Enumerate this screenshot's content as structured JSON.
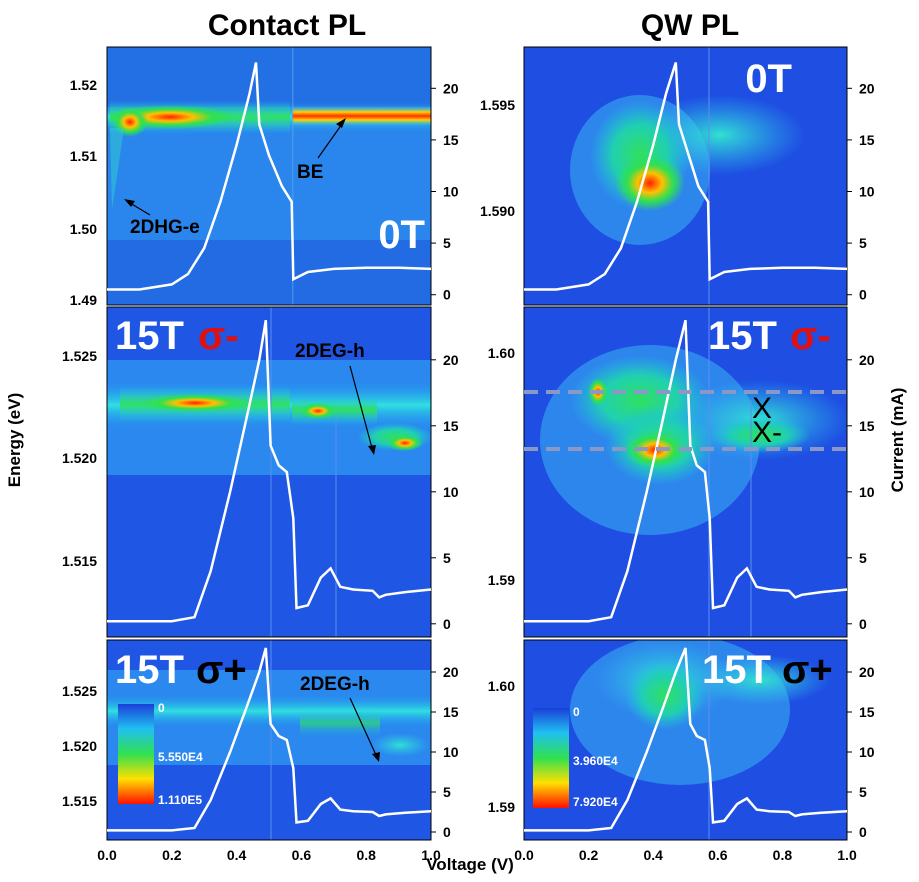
{
  "titles": {
    "left": "Contact PL",
    "right": "QW PL"
  },
  "axis_titles": {
    "x": "Voltage (V)",
    "y_left": "Energy (eV)",
    "y_right": "Current (mA)"
  },
  "colors": {
    "heat_low": "#1f4fe0",
    "heat_mid": "#20e060",
    "heat_high": "#ffe000",
    "heat_max": "#ff2000",
    "curve": "#ffffff"
  },
  "chart_data": [
    {
      "id": "contact-0T",
      "type": "heatmap",
      "panel_label": "0T",
      "polarization": "",
      "x": [
        0,
        1
      ],
      "ylim": [
        1.488,
        1.524
      ],
      "y2lim": [
        -1,
        24
      ],
      "yticks": [
        "1.49",
        "1.50",
        "1.51",
        "1.52"
      ],
      "annotations": [
        "2DHG-e",
        "BE"
      ],
      "current": [
        [
          0,
          0.5
        ],
        [
          0.1,
          0.5
        ],
        [
          0.2,
          1.0
        ],
        [
          0.25,
          2.0
        ],
        [
          0.3,
          4.5
        ],
        [
          0.35,
          9.0
        ],
        [
          0.4,
          14.5
        ],
        [
          0.44,
          19.5
        ],
        [
          0.46,
          22.5
        ],
        [
          0.47,
          16.5
        ],
        [
          0.5,
          13.5
        ],
        [
          0.54,
          10.5
        ],
        [
          0.57,
          9.0
        ],
        [
          0.575,
          1.5
        ],
        [
          0.62,
          2.2
        ],
        [
          0.7,
          2.5
        ],
        [
          0.8,
          2.6
        ],
        [
          0.9,
          2.6
        ],
        [
          1.0,
          2.5
        ]
      ]
    },
    {
      "id": "qw-0T",
      "type": "heatmap",
      "panel_label": "0T",
      "polarization": "",
      "x": [
        0,
        1
      ],
      "ylim": [
        1.5865,
        1.5975
      ],
      "y2lim": [
        -1,
        24
      ],
      "yticks": [
        "1.590",
        "1.595"
      ],
      "annotations": [],
      "current": [
        [
          0,
          0.5
        ],
        [
          0.1,
          0.5
        ],
        [
          0.2,
          1.0
        ],
        [
          0.25,
          2.0
        ],
        [
          0.3,
          4.5
        ],
        [
          0.35,
          9.0
        ],
        [
          0.4,
          14.5
        ],
        [
          0.44,
          19.5
        ],
        [
          0.47,
          22.5
        ],
        [
          0.48,
          16.5
        ],
        [
          0.51,
          13.5
        ],
        [
          0.54,
          10.5
        ],
        [
          0.57,
          9.0
        ],
        [
          0.575,
          1.5
        ],
        [
          0.62,
          2.2
        ],
        [
          0.7,
          2.5
        ],
        [
          0.8,
          2.6
        ],
        [
          0.9,
          2.6
        ],
        [
          1.0,
          2.5
        ]
      ]
    },
    {
      "id": "contact-15T-minus",
      "type": "heatmap",
      "panel_label": "15T",
      "polarization": "σ-",
      "x": [
        0,
        1
      ],
      "ylim": [
        1.5127,
        1.5285
      ],
      "y2lim": [
        -1,
        24
      ],
      "yticks": [
        "1.515",
        "1.520",
        "1.525"
      ],
      "annotations": [
        "2DEG-h"
      ],
      "current": [
        [
          0,
          0.2
        ],
        [
          0.2,
          0.2
        ],
        [
          0.27,
          0.5
        ],
        [
          0.32,
          4.0
        ],
        [
          0.38,
          10.0
        ],
        [
          0.43,
          15.5
        ],
        [
          0.47,
          20.0
        ],
        [
          0.49,
          23.0
        ],
        [
          0.505,
          13.5
        ],
        [
          0.53,
          12.0
        ],
        [
          0.555,
          11.5
        ],
        [
          0.575,
          8.0
        ],
        [
          0.585,
          1.2
        ],
        [
          0.62,
          1.4
        ],
        [
          0.66,
          3.5
        ],
        [
          0.69,
          4.2
        ],
        [
          0.72,
          2.8
        ],
        [
          0.76,
          2.6
        ],
        [
          0.82,
          2.5
        ],
        [
          0.84,
          2.0
        ],
        [
          0.86,
          2.2
        ],
        [
          0.92,
          2.4
        ],
        [
          1.0,
          2.6
        ]
      ]
    },
    {
      "id": "qw-15T-minus",
      "type": "heatmap",
      "panel_label": "15T",
      "polarization": "σ-",
      "x": [
        0,
        1
      ],
      "ylim": [
        1.5885,
        1.6035
      ],
      "y2lim": [
        -1,
        24
      ],
      "yticks": [
        "1.59",
        "1.60"
      ],
      "annotations": [
        "X",
        "X-"
      ],
      "current": [
        [
          0,
          0.2
        ],
        [
          0.2,
          0.2
        ],
        [
          0.27,
          0.5
        ],
        [
          0.32,
          4.0
        ],
        [
          0.38,
          10.0
        ],
        [
          0.43,
          15.5
        ],
        [
          0.47,
          20.0
        ],
        [
          0.5,
          23.0
        ],
        [
          0.515,
          13.5
        ],
        [
          0.535,
          12.0
        ],
        [
          0.56,
          11.5
        ],
        [
          0.575,
          8.0
        ],
        [
          0.585,
          1.2
        ],
        [
          0.62,
          1.4
        ],
        [
          0.66,
          3.5
        ],
        [
          0.69,
          4.2
        ],
        [
          0.72,
          2.8
        ],
        [
          0.76,
          2.6
        ],
        [
          0.82,
          2.5
        ],
        [
          0.84,
          2.0
        ],
        [
          0.86,
          2.2
        ],
        [
          0.92,
          2.4
        ],
        [
          1.0,
          2.6
        ]
      ]
    },
    {
      "id": "contact-15T-plus",
      "type": "heatmap",
      "panel_label": "15T",
      "polarization": "σ+",
      "x": [
        0,
        1
      ],
      "ylim": [
        1.5127,
        1.5285
      ],
      "y2lim": [
        -1,
        24
      ],
      "yticks": [
        "1.515",
        "1.520",
        "1.525"
      ],
      "annotations": [
        "2DEG-h"
      ],
      "colorbar": {
        "labels": [
          "0",
          "5.550E4",
          "1.110E5"
        ]
      },
      "current": [
        [
          0,
          0.2
        ],
        [
          0.2,
          0.2
        ],
        [
          0.27,
          0.5
        ],
        [
          0.32,
          4.0
        ],
        [
          0.38,
          10.0
        ],
        [
          0.43,
          15.5
        ],
        [
          0.47,
          20.0
        ],
        [
          0.49,
          23.0
        ],
        [
          0.505,
          13.5
        ],
        [
          0.53,
          12.0
        ],
        [
          0.555,
          11.5
        ],
        [
          0.575,
          8.0
        ],
        [
          0.585,
          1.2
        ],
        [
          0.62,
          1.4
        ],
        [
          0.66,
          3.5
        ],
        [
          0.69,
          4.2
        ],
        [
          0.72,
          2.8
        ],
        [
          0.76,
          2.6
        ],
        [
          0.82,
          2.5
        ],
        [
          0.84,
          2.0
        ],
        [
          0.86,
          2.2
        ],
        [
          0.92,
          2.4
        ],
        [
          1.0,
          2.6
        ]
      ]
    },
    {
      "id": "qw-15T-plus",
      "type": "heatmap",
      "panel_label": "15T",
      "polarization": "σ+",
      "x": [
        0,
        1
      ],
      "ylim": [
        1.5885,
        1.6035
      ],
      "y2lim": [
        -1,
        24
      ],
      "yticks": [
        "1.59",
        "1.60"
      ],
      "annotations": [],
      "colorbar": {
        "labels": [
          "0",
          "3.960E4",
          "7.920E4"
        ]
      },
      "current": [
        [
          0,
          0.2
        ],
        [
          0.2,
          0.2
        ],
        [
          0.27,
          0.5
        ],
        [
          0.32,
          4.0
        ],
        [
          0.38,
          10.0
        ],
        [
          0.43,
          15.5
        ],
        [
          0.47,
          20.0
        ],
        [
          0.5,
          23.0
        ],
        [
          0.515,
          13.5
        ],
        [
          0.535,
          12.0
        ],
        [
          0.56,
          11.5
        ],
        [
          0.575,
          8.0
        ],
        [
          0.585,
          1.2
        ],
        [
          0.62,
          1.4
        ],
        [
          0.66,
          3.5
        ],
        [
          0.69,
          4.2
        ],
        [
          0.72,
          2.8
        ],
        [
          0.76,
          2.6
        ],
        [
          0.82,
          2.5
        ],
        [
          0.84,
          2.0
        ],
        [
          0.86,
          2.2
        ],
        [
          0.92,
          2.4
        ],
        [
          1.0,
          2.6
        ]
      ]
    }
  ],
  "right_axis_ticks": [
    "0",
    "5",
    "10",
    "15",
    "20"
  ],
  "x_axis_ticks": [
    "0.0",
    "0.2",
    "0.4",
    "0.6",
    "0.8",
    "1.0"
  ]
}
